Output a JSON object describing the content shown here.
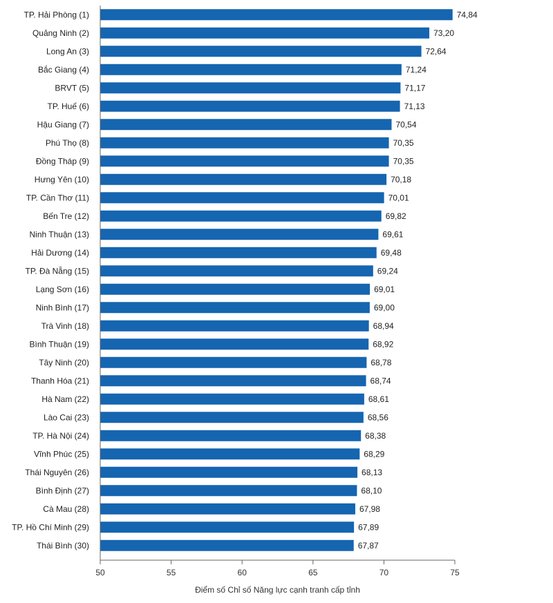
{
  "chart_data": {
    "type": "bar",
    "orientation": "horizontal",
    "categories": [
      "TP. Hải Phòng (1)",
      "Quảng Ninh (2)",
      "Long An (3)",
      "Bắc Giang (4)",
      "BRVT (5)",
      "TP. Huế (6)",
      "Hậu Giang (7)",
      "Phú Thọ (8)",
      "Đồng Tháp (9)",
      "Hưng Yên (10)",
      "TP. Cần Thơ (11)",
      "Bến Tre (12)",
      "Ninh Thuận (13)",
      "Hải Dương (14)",
      "TP. Đà Nẵng (15)",
      "Lạng Sơn (16)",
      "Ninh Bình (17)",
      "Trà Vinh (18)",
      "Bình Thuận (19)",
      "Tây Ninh (20)",
      "Thanh Hóa (21)",
      "Hà Nam (22)",
      "Lào Cai (23)",
      "TP. Hà Nội (24)",
      "Vĩnh Phúc (25)",
      "Thái Nguyên (26)",
      "Bình Định (27)",
      "Cà Mau (28)",
      "TP. Hồ Chí Minh (29)",
      "Thái Bình (30)"
    ],
    "values": [
      74.84,
      73.2,
      72.64,
      71.24,
      71.17,
      71.13,
      70.54,
      70.35,
      70.35,
      70.18,
      70.01,
      69.82,
      69.61,
      69.48,
      69.24,
      69.01,
      69.0,
      68.94,
      68.92,
      68.78,
      68.74,
      68.61,
      68.56,
      68.38,
      68.29,
      68.13,
      68.1,
      67.98,
      67.89,
      67.87
    ],
    "value_labels": [
      "74,84",
      "73,20",
      "72,64",
      "71,24",
      "71,17",
      "71,13",
      "70,54",
      "70,35",
      "70,35",
      "70,18",
      "70,01",
      "69,82",
      "69,61",
      "69,48",
      "69,24",
      "69,01",
      "69,00",
      "68,94",
      "68,92",
      "68,78",
      "68,74",
      "68,61",
      "68,56",
      "68,38",
      "68,29",
      "68,13",
      "68,10",
      "67,98",
      "67,89",
      "67,87"
    ],
    "xlim": [
      50,
      75
    ],
    "xticks": [
      50,
      55,
      60,
      65,
      70,
      75
    ],
    "xlabel": "Điểm số Chỉ số Năng lực cạnh tranh cấp tỉnh",
    "ylabel": "",
    "title": "",
    "grid": false,
    "colors": {
      "bar": "#1565b0",
      "axis": "#666666"
    }
  }
}
